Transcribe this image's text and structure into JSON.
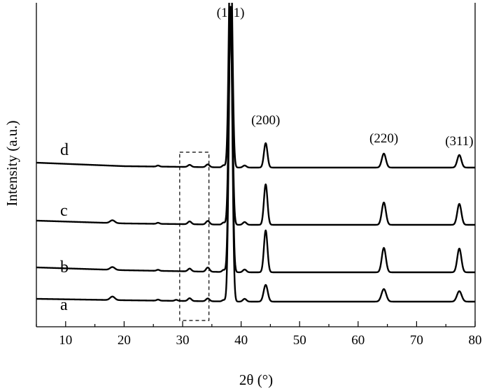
{
  "chart_data": {
    "type": "line",
    "title": "",
    "xlabel": "2θ (°)",
    "ylabel": "Intensity (a.u.)",
    "xlim": [
      5,
      80
    ],
    "xticks": [
      10,
      20,
      30,
      40,
      50,
      60,
      70,
      80
    ],
    "y_ticks_shown": false,
    "grid": false,
    "peak_labels": [
      {
        "text": "(111)",
        "x": 38.2
      },
      {
        "text": "(200)",
        "x": 44.2
      },
      {
        "text": "(220)",
        "x": 64.4
      },
      {
        "text": "(311)",
        "x": 77.3
      }
    ],
    "highlight_box": {
      "x": [
        29.5,
        34.5
      ],
      "style": "dashed"
    },
    "series": [
      {
        "name": "a",
        "baseline": [
          [
            5,
            92
          ],
          [
            20,
            94
          ],
          [
            40,
            96
          ],
          [
            80,
            96
          ]
        ],
        "peaks": [
          [
            18.0,
            0.4,
            5
          ],
          [
            25.8,
            0.25,
            1.5
          ],
          [
            28.9,
            0.25,
            1.5
          ],
          [
            31.2,
            0.3,
            4
          ],
          [
            34.3,
            0.3,
            4
          ],
          [
            37.0,
            0.25,
            2
          ],
          [
            38.2,
            0.3,
            420
          ],
          [
            40.6,
            0.3,
            4
          ],
          [
            44.2,
            0.35,
            24
          ],
          [
            64.4,
            0.4,
            18
          ],
          [
            77.3,
            0.4,
            15
          ]
        ]
      },
      {
        "name": "b",
        "baseline": [
          [
            5,
            68
          ],
          [
            20,
            72
          ],
          [
            40,
            75
          ],
          [
            80,
            75
          ]
        ],
        "peaks": [
          [
            18.0,
            0.4,
            4
          ],
          [
            25.8,
            0.25,
            1.5
          ],
          [
            31.2,
            0.3,
            4
          ],
          [
            34.3,
            0.3,
            6
          ],
          [
            37.0,
            0.25,
            3
          ],
          [
            38.2,
            0.3,
            380
          ],
          [
            40.6,
            0.3,
            4
          ],
          [
            44.2,
            0.3,
            60
          ],
          [
            64.4,
            0.35,
            35
          ],
          [
            77.3,
            0.35,
            34
          ]
        ]
      },
      {
        "name": "c",
        "baseline": [
          [
            5,
            52
          ],
          [
            20,
            56
          ],
          [
            40,
            58
          ],
          [
            80,
            58
          ]
        ],
        "peaks": [
          [
            18.0,
            0.4,
            4
          ],
          [
            25.8,
            0.25,
            1.5
          ],
          [
            31.2,
            0.3,
            4
          ],
          [
            34.3,
            0.3,
            5
          ],
          [
            37.0,
            0.25,
            3
          ],
          [
            38.2,
            0.3,
            300
          ],
          [
            40.6,
            0.3,
            4
          ],
          [
            44.2,
            0.3,
            58
          ],
          [
            64.4,
            0.35,
            32
          ],
          [
            77.3,
            0.35,
            30
          ]
        ]
      },
      {
        "name": "d",
        "baseline": [
          [
            5,
            27
          ],
          [
            20,
            32
          ],
          [
            40,
            34
          ],
          [
            80,
            34
          ]
        ],
        "peaks": [
          [
            25.8,
            0.25,
            1.5
          ],
          [
            31.2,
            0.3,
            3
          ],
          [
            34.3,
            0.3,
            4
          ],
          [
            37.0,
            0.25,
            3
          ],
          [
            38.2,
            0.3,
            330
          ],
          [
            40.6,
            0.3,
            3
          ],
          [
            44.2,
            0.3,
            35
          ],
          [
            64.4,
            0.35,
            20
          ],
          [
            77.3,
            0.35,
            18
          ]
        ]
      }
    ]
  }
}
